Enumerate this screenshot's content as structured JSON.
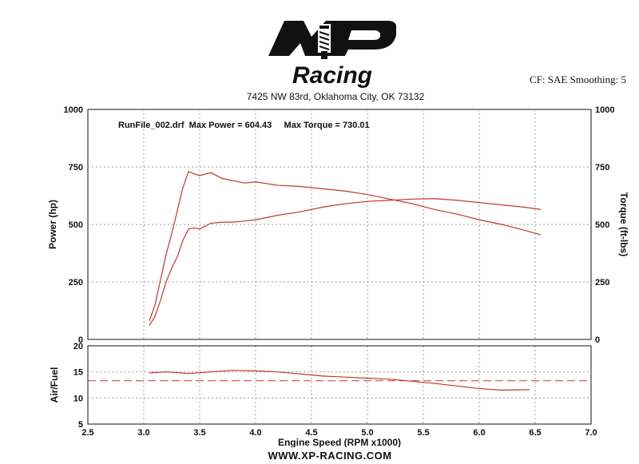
{
  "header": {
    "logo_text": "XP",
    "logo_script": "Racing",
    "address": "7425 NW 83rd, Oklahoma City, OK 73132",
    "settings": "CF: SAE  Smoothing: 5"
  },
  "footer": {
    "url": "WWW.XP-RACING.COM"
  },
  "colors": {
    "curve": "#c0392b",
    "grid": "#9a9a9a",
    "axis": "#111111"
  },
  "chart_data": [
    {
      "type": "line",
      "annotation": "RunFile_002.drf  Max Power = 604.43     Max Torque = 730.01",
      "ylabel": "Power (hp)",
      "y2label": "Torque (ft-lbs)",
      "xlim": [
        2.5,
        7.0
      ],
      "ylim": [
        0,
        1000
      ],
      "y2lim": [
        0,
        1000
      ],
      "y_ticks": [
        "0",
        "250",
        "500",
        "750",
        "1000"
      ],
      "y2_ticks": [
        "0",
        "250",
        "500",
        "750",
        "1000"
      ],
      "grid": true,
      "series": [
        {
          "x": [
            3.05,
            3.1,
            3.15,
            3.2,
            3.25,
            3.3,
            3.35,
            3.4,
            3.45,
            3.5,
            3.6,
            3.7,
            3.8,
            3.9,
            4.0,
            4.2,
            4.4,
            4.6,
            4.8,
            5.0,
            5.2,
            5.4,
            5.6,
            5.8,
            6.0,
            6.2,
            6.4,
            6.55
          ],
          "values": [
            60,
            100,
            170,
            250,
            310,
            360,
            430,
            480,
            485,
            480,
            505,
            510,
            510,
            515,
            520,
            540,
            555,
            575,
            590,
            600,
            605,
            610,
            612,
            605,
            595,
            585,
            575,
            565
          ]
        },
        {
          "x": [
            3.05,
            3.1,
            3.15,
            3.2,
            3.25,
            3.3,
            3.35,
            3.4,
            3.45,
            3.5,
            3.6,
            3.7,
            3.8,
            3.9,
            4.0,
            4.2,
            4.4,
            4.6,
            4.8,
            5.0,
            5.2,
            5.4,
            5.6,
            5.8,
            6.0,
            6.2,
            6.4,
            6.55
          ],
          "values": [
            80,
            150,
            260,
            370,
            460,
            560,
            660,
            730,
            720,
            712,
            725,
            700,
            690,
            680,
            685,
            670,
            665,
            655,
            645,
            630,
            610,
            590,
            565,
            545,
            520,
            500,
            475,
            455
          ]
        }
      ]
    },
    {
      "type": "line",
      "xlabel": "Engine Speed (RPM x1000)",
      "ylabel": "Air/Fuel",
      "xlim": [
        2.5,
        7.0
      ],
      "ylim": [
        5,
        20
      ],
      "x_ticks": [
        "2.5",
        "3.0",
        "3.5",
        "4.0",
        "4.5",
        "5.0",
        "5.5",
        "6.0",
        "6.5",
        "7.0"
      ],
      "y_ticks": [
        "5",
        "10",
        "15",
        "20"
      ],
      "grid": true,
      "reference_line": 13.3,
      "series": [
        {
          "x": [
            3.05,
            3.2,
            3.4,
            3.6,
            3.8,
            4.0,
            4.2,
            4.4,
            4.6,
            4.8,
            5.0,
            5.2,
            5.4,
            5.6,
            5.8,
            6.0,
            6.2,
            6.45
          ],
          "values": [
            14.8,
            15.0,
            14.7,
            15.0,
            15.3,
            15.2,
            15.0,
            14.6,
            14.2,
            14.0,
            13.8,
            13.6,
            13.2,
            12.8,
            12.3,
            11.8,
            11.5,
            11.6
          ]
        }
      ]
    }
  ]
}
